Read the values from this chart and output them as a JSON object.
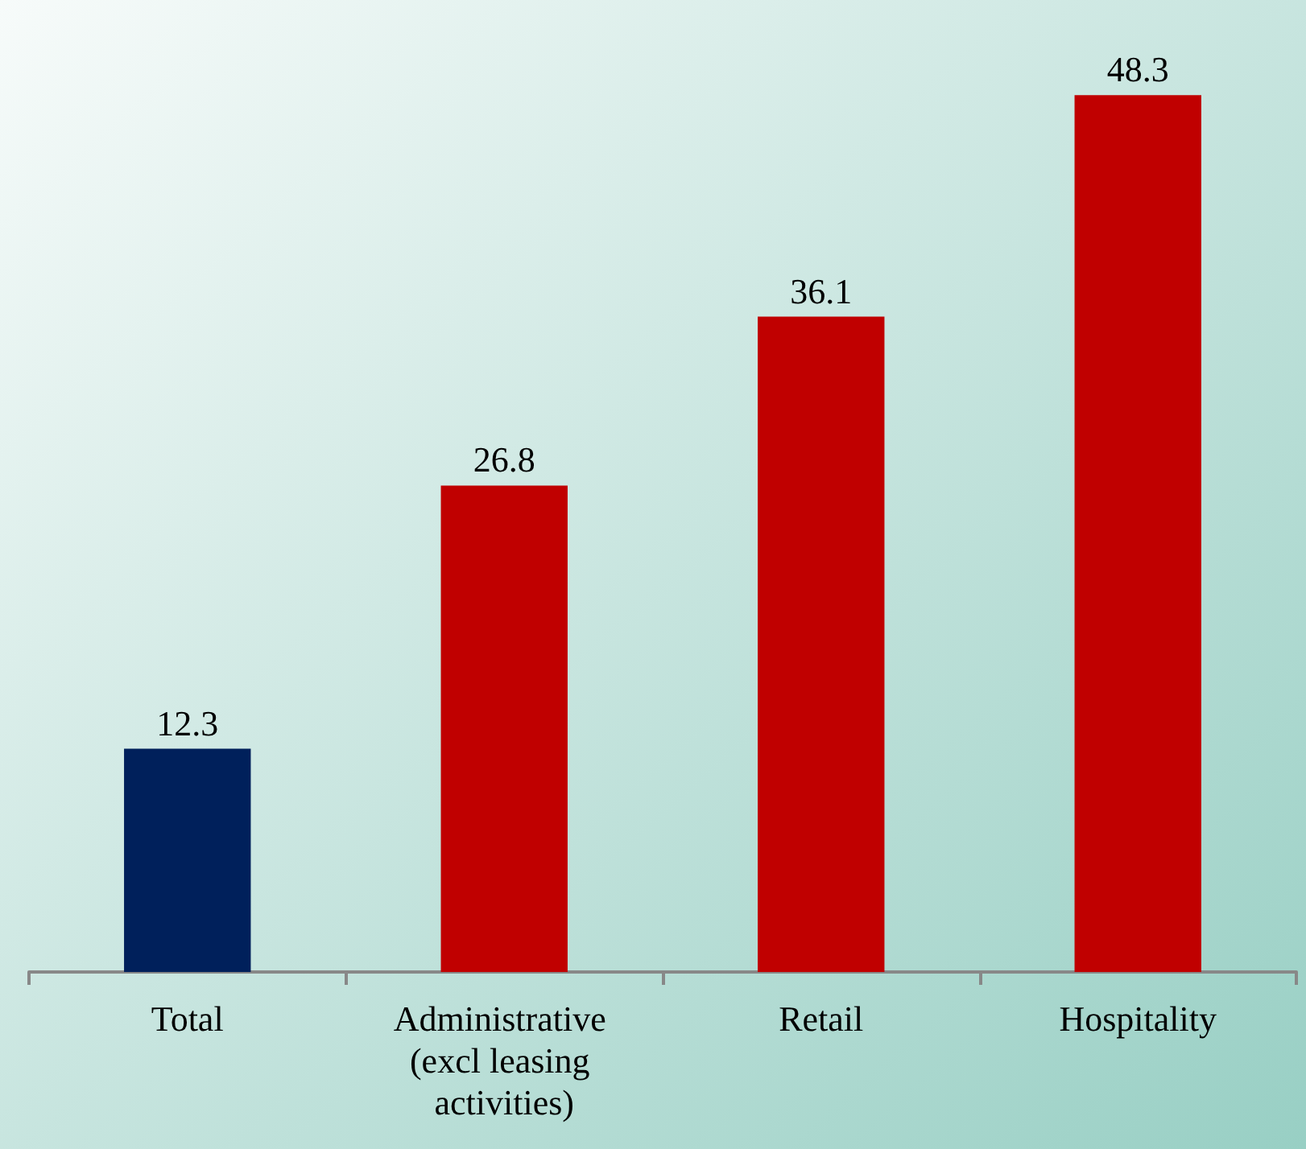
{
  "chart_data": {
    "type": "bar",
    "categories": [
      "Total",
      "Administrative (excl leasing activities)",
      "Retail",
      "Hospitality"
    ],
    "values": [
      12.3,
      26.8,
      36.1,
      48.3
    ],
    "colors": [
      "#00205b",
      "#c00000",
      "#c00000",
      "#c00000"
    ],
    "data_labels": true
  }
}
